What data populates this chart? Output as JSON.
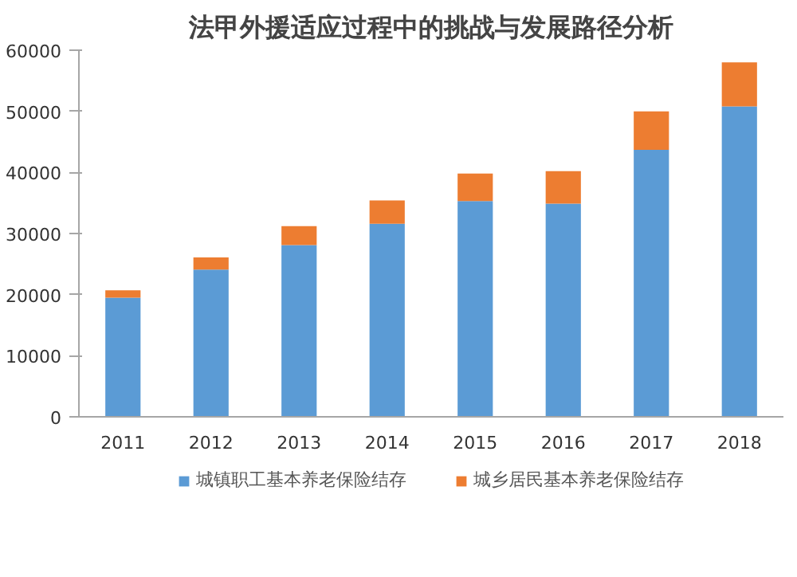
{
  "chart_data": {
    "type": "bar",
    "title": "法甲外援适应过程中的挑战与发展路径分析",
    "stacked": true,
    "categories": [
      "2011",
      "2012",
      "2013",
      "2014",
      "2015",
      "2016",
      "2017",
      "2018"
    ],
    "series": [
      {
        "name": "城镇职工基本养老保险结存",
        "color": "#5b9bd5",
        "values": [
          19500,
          24100,
          28100,
          31600,
          35300,
          34900,
          43700,
          50800
        ]
      },
      {
        "name": "城乡居民基本养老保险结存",
        "color": "#ed7d31",
        "values": [
          1200,
          2000,
          3100,
          3800,
          4500,
          5300,
          6300,
          7200
        ]
      }
    ],
    "ylim": [
      0,
      60000
    ],
    "yticks": [
      0,
      10000,
      20000,
      30000,
      40000,
      50000,
      60000
    ],
    "grid": false,
    "legend": "bottom"
  }
}
